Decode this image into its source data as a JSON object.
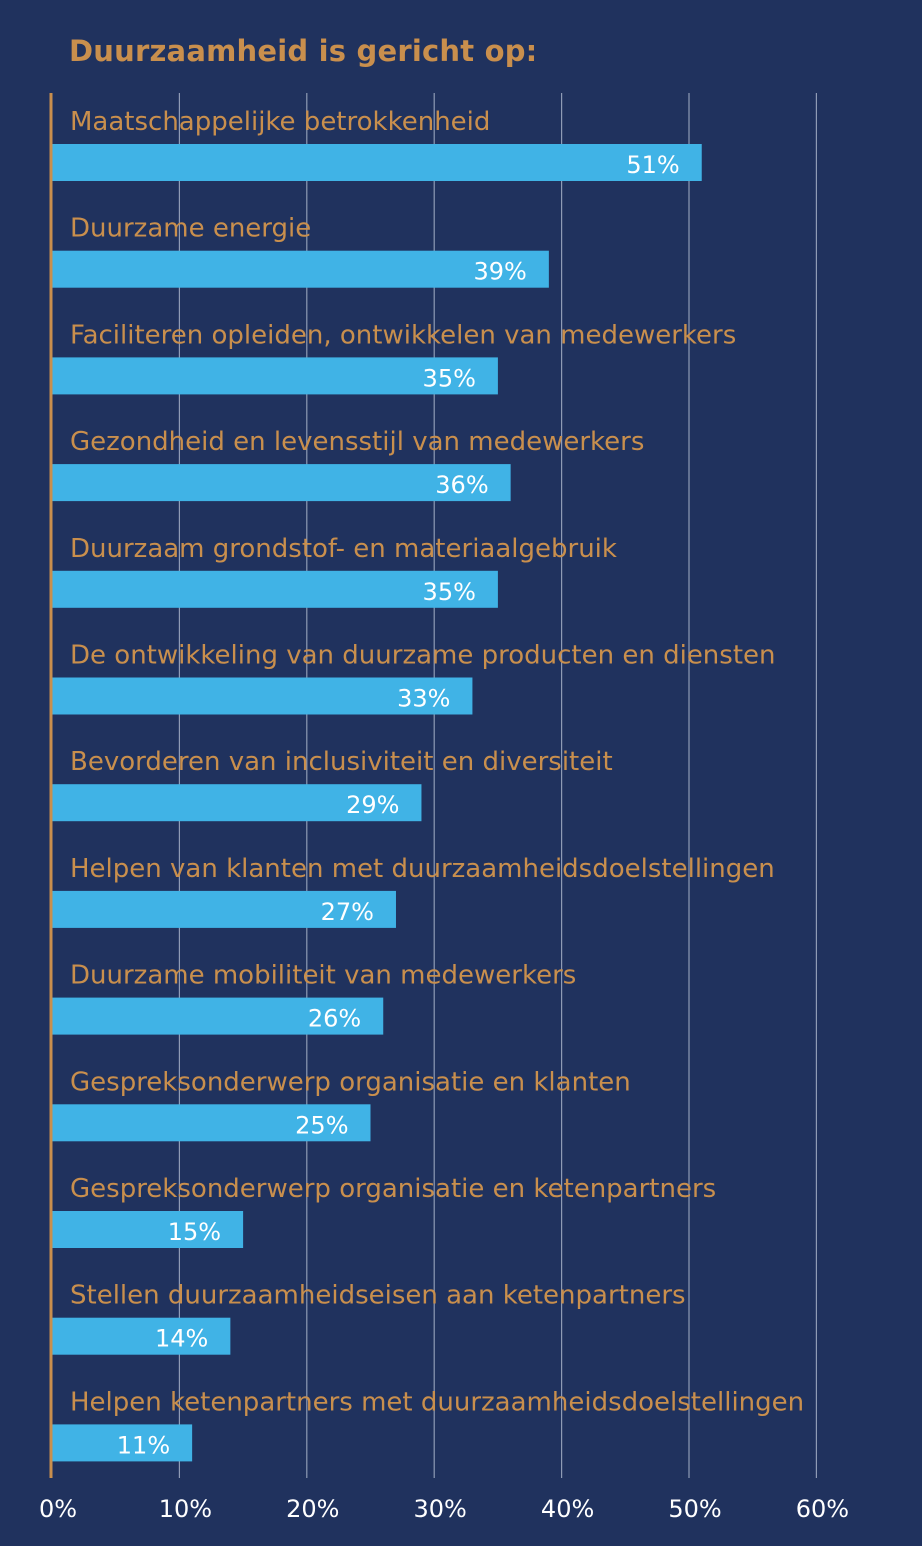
{
  "chart_data": {
    "type": "bar",
    "orientation": "horizontal",
    "title": "Duurzaamheid is gericht op:",
    "xlabel": "",
    "ylabel": "",
    "categories": [
      "Maatschappelijke betrokkenheid",
      "Duurzame energie",
      "Faciliteren opleiden, ontwikkelen van medewerkers",
      "Gezondheid en levensstijl van medewerkers",
      "Duurzaam grondstof- en materiaalgebruik",
      "De ontwikkeling van duurzame producten en diensten",
      "Bevorderen van inclusiviteit en diversiteit",
      "Helpen van klanten met duurzaamheidsdoelstellingen",
      "Duurzame mobiliteit van medewerkers",
      "Gespreksonderwerp organisatie en klanten",
      "Gespreksonderwerp organisatie en ketenpartners",
      "Stellen duurzaamheidseisen aan ketenpartners",
      "Helpen ketenpartners met duurzaamheidsdoelstellingen"
    ],
    "values": [
      51,
      39,
      35,
      36,
      35,
      33,
      29,
      27,
      26,
      25,
      15,
      14,
      11
    ],
    "value_labels": [
      "51%",
      "39%",
      "35%",
      "36%",
      "35%",
      "33%",
      "29%",
      "27%",
      "26%",
      "25%",
      "15%",
      "14%",
      "11%"
    ],
    "xlim": [
      0,
      60
    ],
    "xticks": [
      0,
      10,
      20,
      30,
      40,
      50,
      60
    ],
    "xtick_labels": [
      "0%",
      "10%",
      "20%",
      "30%",
      "40%",
      "50%",
      "60%"
    ],
    "grid": true,
    "legend": "none"
  },
  "colors": {
    "background": "#20325e",
    "bar": "#40b3e6",
    "category_text": "#c98f4d",
    "title_text": "#c98f4d",
    "axis_line": "#c98f4d",
    "gridline": "#8f9bb5",
    "value_text": "#ffffff",
    "tick_text": "#ffffff"
  }
}
